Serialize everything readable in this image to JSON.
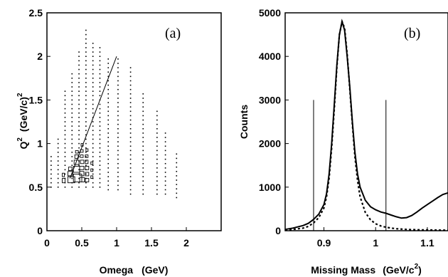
{
  "chart_data": [
    {
      "type": "scatter",
      "panel_label": "(a)",
      "xlabel": "Omega",
      "xunit": "(GeV)",
      "ylabel": "Q",
      "ylabel_sup": "2",
      "yunit": "(GeV/c)",
      "yunit_sup": "2",
      "xlim": [
        0,
        2.5
      ],
      "ylim": [
        0,
        2.5
      ],
      "xticks": [
        0,
        0.5,
        1,
        1.5,
        2
      ],
      "xtick_labels": [
        "0",
        "0.5",
        "1",
        "1.5",
        "2"
      ],
      "yticks": [
        0,
        0.5,
        1,
        1.5,
        2,
        2.5
      ],
      "ytick_labels": [
        "0",
        "0.5",
        "1",
        "1.5",
        "2",
        "2.5"
      ],
      "grid": false,
      "dot_columns": [
        {
          "x": 0.06,
          "ymin": 0.5,
          "ymax": 0.85
        },
        {
          "x": 0.16,
          "ymin": 0.5,
          "ymax": 1.05
        },
        {
          "x": 0.26,
          "ymin": 0.5,
          "ymax": 1.6
        },
        {
          "x": 0.36,
          "ymin": 0.5,
          "ymax": 1.8
        },
        {
          "x": 0.46,
          "ymin": 0.5,
          "ymax": 2.05
        },
        {
          "x": 0.56,
          "ymin": 0.5,
          "ymax": 2.3
        },
        {
          "x": 0.66,
          "ymin": 0.5,
          "ymax": 2.15
        },
        {
          "x": 0.76,
          "ymin": 0.5,
          "ymax": 2.1
        },
        {
          "x": 0.88,
          "ymin": 0.47,
          "ymax": 2.0
        },
        {
          "x": 1.02,
          "ymin": 0.47,
          "ymax": 1.97
        },
        {
          "x": 1.2,
          "ymin": 0.42,
          "ymax": 1.88
        },
        {
          "x": 1.38,
          "ymin": 0.42,
          "ymax": 1.6
        },
        {
          "x": 1.58,
          "ymin": 0.42,
          "ymax": 1.4
        },
        {
          "x": 1.7,
          "ymin": 0.42,
          "ymax": 1.15
        },
        {
          "x": 1.86,
          "ymin": 0.38,
          "ymax": 0.92
        }
      ],
      "boxes": [
        {
          "x": 0.22,
          "y": 0.55,
          "w": 0.04,
          "h": 0.05
        },
        {
          "x": 0.22,
          "y": 0.62,
          "w": 0.03,
          "h": 0.04
        },
        {
          "x": 0.3,
          "y": 0.55,
          "w": 0.1,
          "h": 0.07
        },
        {
          "x": 0.3,
          "y": 0.63,
          "w": 0.07,
          "h": 0.05
        },
        {
          "x": 0.31,
          "y": 0.69,
          "w": 0.05,
          "h": 0.04
        },
        {
          "x": 0.38,
          "y": 0.56,
          "w": 0.12,
          "h": 0.09
        },
        {
          "x": 0.38,
          "y": 0.67,
          "w": 0.09,
          "h": 0.07
        },
        {
          "x": 0.39,
          "y": 0.76,
          "w": 0.07,
          "h": 0.05
        },
        {
          "x": 0.4,
          "y": 0.83,
          "w": 0.05,
          "h": 0.04
        },
        {
          "x": 0.41,
          "y": 0.89,
          "w": 0.04,
          "h": 0.03
        },
        {
          "x": 0.47,
          "y": 0.56,
          "w": 0.07,
          "h": 0.05
        },
        {
          "x": 0.47,
          "y": 0.63,
          "w": 0.06,
          "h": 0.05
        },
        {
          "x": 0.47,
          "y": 0.7,
          "w": 0.06,
          "h": 0.04
        },
        {
          "x": 0.48,
          "y": 0.77,
          "w": 0.05,
          "h": 0.04
        },
        {
          "x": 0.48,
          "y": 0.84,
          "w": 0.04,
          "h": 0.03
        },
        {
          "x": 0.48,
          "y": 0.9,
          "w": 0.04,
          "h": 0.03
        },
        {
          "x": 0.49,
          "y": 0.97,
          "w": 0.03,
          "h": 0.03
        },
        {
          "x": 0.55,
          "y": 0.56,
          "w": 0.05,
          "h": 0.04
        },
        {
          "x": 0.55,
          "y": 0.63,
          "w": 0.05,
          "h": 0.04
        },
        {
          "x": 0.55,
          "y": 0.7,
          "w": 0.05,
          "h": 0.04
        },
        {
          "x": 0.55,
          "y": 0.77,
          "w": 0.04,
          "h": 0.04
        },
        {
          "x": 0.55,
          "y": 0.84,
          "w": 0.04,
          "h": 0.03
        },
        {
          "x": 0.56,
          "y": 0.91,
          "w": 0.03,
          "h": 0.03
        },
        {
          "x": 0.63,
          "y": 0.6,
          "w": 0.03,
          "h": 0.03
        },
        {
          "x": 0.63,
          "y": 0.68,
          "w": 0.03,
          "h": 0.03
        },
        {
          "x": 0.63,
          "y": 0.76,
          "w": 0.03,
          "h": 0.03
        }
      ],
      "annotation_line": {
        "x": [
          0.33,
          1.0
        ],
        "y": [
          0.6,
          2.0
        ]
      }
    },
    {
      "type": "line",
      "panel_label": "(b)",
      "xlabel": "Missing Mass",
      "xunit": "(GeV/c",
      "xunit_sup": "2",
      "xunit_end": ")",
      "ylabel": "Counts",
      "xlim": [
        0.825,
        1.14
      ],
      "ylim": [
        0,
        5000
      ],
      "xticks": [
        0.9,
        1.0,
        1.1
      ],
      "xtick_labels": [
        "0.9",
        "1",
        "1.1"
      ],
      "yticks": [
        0,
        1000,
        2000,
        3000,
        4000,
        5000
      ],
      "ytick_labels": [
        "0",
        "1000",
        "2000",
        "3000",
        "4000",
        "5000"
      ],
      "grid": false,
      "series": [
        {
          "style": "solid",
          "x": [
            0.825,
            0.84,
            0.86,
            0.87,
            0.88,
            0.89,
            0.9,
            0.905,
            0.91,
            0.915,
            0.92,
            0.925,
            0.93,
            0.935,
            0.94,
            0.945,
            0.95,
            0.955,
            0.96,
            0.965,
            0.97,
            0.98,
            0.99,
            1.0,
            1.01,
            1.02,
            1.03,
            1.04,
            1.05,
            1.06,
            1.07,
            1.08,
            1.09,
            1.1,
            1.11,
            1.12,
            1.13,
            1.14
          ],
          "y": [
            30,
            60,
            120,
            170,
            260,
            380,
            600,
            850,
            1300,
            2000,
            2900,
            3800,
            4500,
            4800,
            4600,
            4000,
            3300,
            2500,
            1800,
            1300,
            1000,
            700,
            550,
            480,
            430,
            400,
            360,
            320,
            290,
            300,
            350,
            430,
            520,
            600,
            680,
            760,
            830,
            870
          ]
        },
        {
          "style": "dotted",
          "x": [
            0.825,
            0.84,
            0.86,
            0.87,
            0.88,
            0.89,
            0.9,
            0.905,
            0.91,
            0.915,
            0.92,
            0.925,
            0.93,
            0.935,
            0.94,
            0.945,
            0.95,
            0.955,
            0.96,
            0.965,
            0.97,
            0.98,
            0.99,
            1.0,
            1.01,
            1.02,
            1.03,
            1.04,
            1.06,
            1.08,
            1.1,
            1.12,
            1.14
          ],
          "y": [
            10,
            30,
            60,
            100,
            180,
            300,
            520,
            780,
            1200,
            1900,
            2800,
            3750,
            4500,
            4800,
            4650,
            4050,
            3250,
            2450,
            1700,
            1150,
            780,
            420,
            250,
            160,
            110,
            80,
            60,
            45,
            30,
            22,
            18,
            15,
            12
          ]
        }
      ],
      "vertical_markers": [
        {
          "x": 0.88,
          "y_top": 3000
        },
        {
          "x": 1.02,
          "y_top": 3000
        }
      ]
    }
  ]
}
